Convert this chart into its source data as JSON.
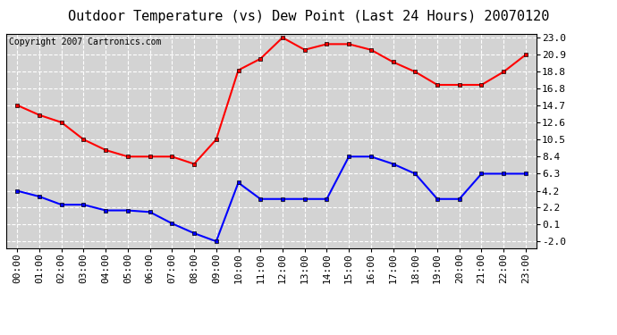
{
  "title": "Outdoor Temperature (vs) Dew Point (Last 24 Hours) 20070120",
  "copyright_text": "Copyright 2007 Cartronics.com",
  "x_labels": [
    "00:00",
    "01:00",
    "02:00",
    "03:00",
    "04:00",
    "05:00",
    "06:00",
    "07:00",
    "08:00",
    "09:00",
    "10:00",
    "11:00",
    "12:00",
    "13:00",
    "14:00",
    "15:00",
    "16:00",
    "17:00",
    "18:00",
    "19:00",
    "20:00",
    "21:00",
    "22:00",
    "23:00"
  ],
  "temp_values": [
    14.7,
    13.5,
    12.6,
    10.5,
    9.2,
    8.4,
    8.4,
    8.4,
    7.5,
    10.5,
    19.0,
    20.4,
    23.0,
    21.5,
    22.2,
    22.2,
    21.5,
    20.0,
    18.8,
    17.2,
    17.2,
    17.2,
    18.8,
    20.9
  ],
  "dew_values": [
    4.2,
    3.5,
    2.5,
    2.5,
    1.8,
    1.8,
    1.6,
    0.2,
    -1.0,
    -2.0,
    5.2,
    3.2,
    3.2,
    3.2,
    3.2,
    8.4,
    8.4,
    7.5,
    6.3,
    3.2,
    3.2,
    6.3,
    6.3,
    6.3
  ],
  "temp_color": "#ff0000",
  "dew_color": "#0000ff",
  "background_color": "#ffffff",
  "plot_bg_color": "#d3d3d3",
  "grid_color": "#ffffff",
  "y_ticks": [
    -2.0,
    0.1,
    2.2,
    4.2,
    6.3,
    8.4,
    10.5,
    12.6,
    14.7,
    16.8,
    18.8,
    20.9,
    23.0
  ],
  "y_min": -2.8,
  "y_max": 23.5,
  "title_fontsize": 11,
  "copyright_fontsize": 7,
  "tick_fontsize": 8,
  "marker": "s",
  "marker_size": 3,
  "linewidth": 1.5
}
